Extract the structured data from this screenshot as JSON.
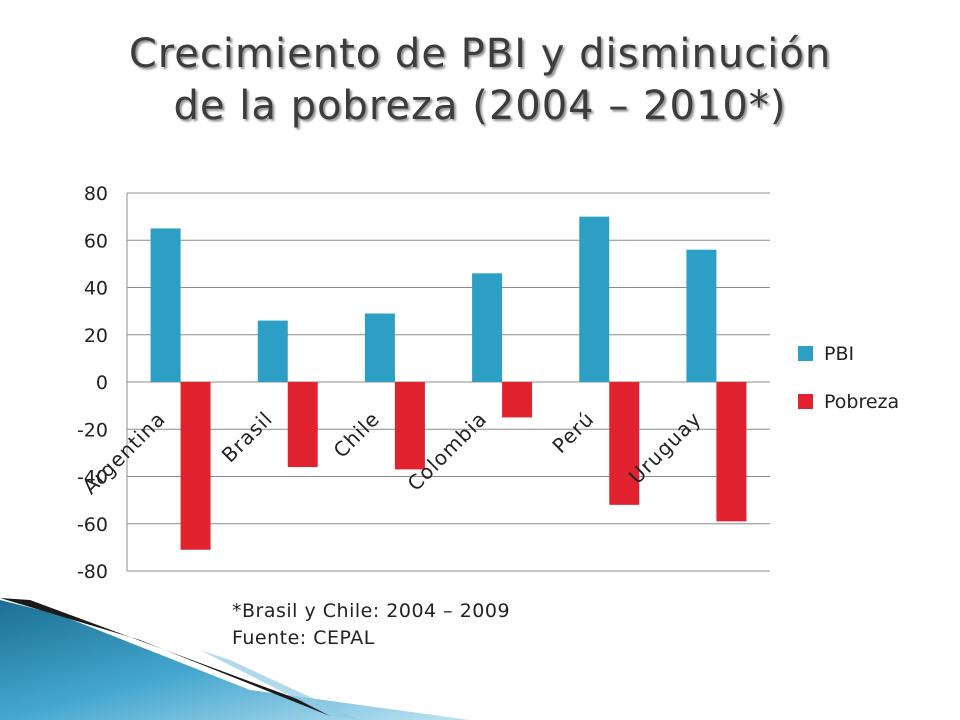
{
  "title_line1": "Crecimiento de PBI y disminución",
  "title_line2": "de la pobreza (2004 – 2010*)",
  "footnote": "*Brasil y Chile: 2004 – 2009",
  "source": " Fuente: CEPAL",
  "chart_data": {
    "type": "bar",
    "categories": [
      "Argentina",
      "Brasil",
      "Chile",
      "Colombia",
      "Perú",
      "Uruguay"
    ],
    "series": [
      {
        "name": "PBI",
        "values": [
          65,
          26,
          29,
          46,
          70,
          56
        ],
        "color": "#2e9fc4"
      },
      {
        "name": "Pobreza",
        "values": [
          -71,
          -36,
          -37,
          -15,
          -52,
          -59
        ],
        "color": "#e12330"
      }
    ],
    "ylim": [
      -80,
      80
    ],
    "yticks": [
      80,
      60,
      40,
      20,
      0,
      -20,
      -40,
      -60,
      -80
    ],
    "ytick_labels": [
      "80",
      "60",
      "40",
      "20",
      "0",
      "‐20",
      "‐40",
      "‐60",
      "‐80"
    ],
    "grid": true,
    "legend": "right",
    "title": "",
    "xlabel": "",
    "ylabel": ""
  }
}
